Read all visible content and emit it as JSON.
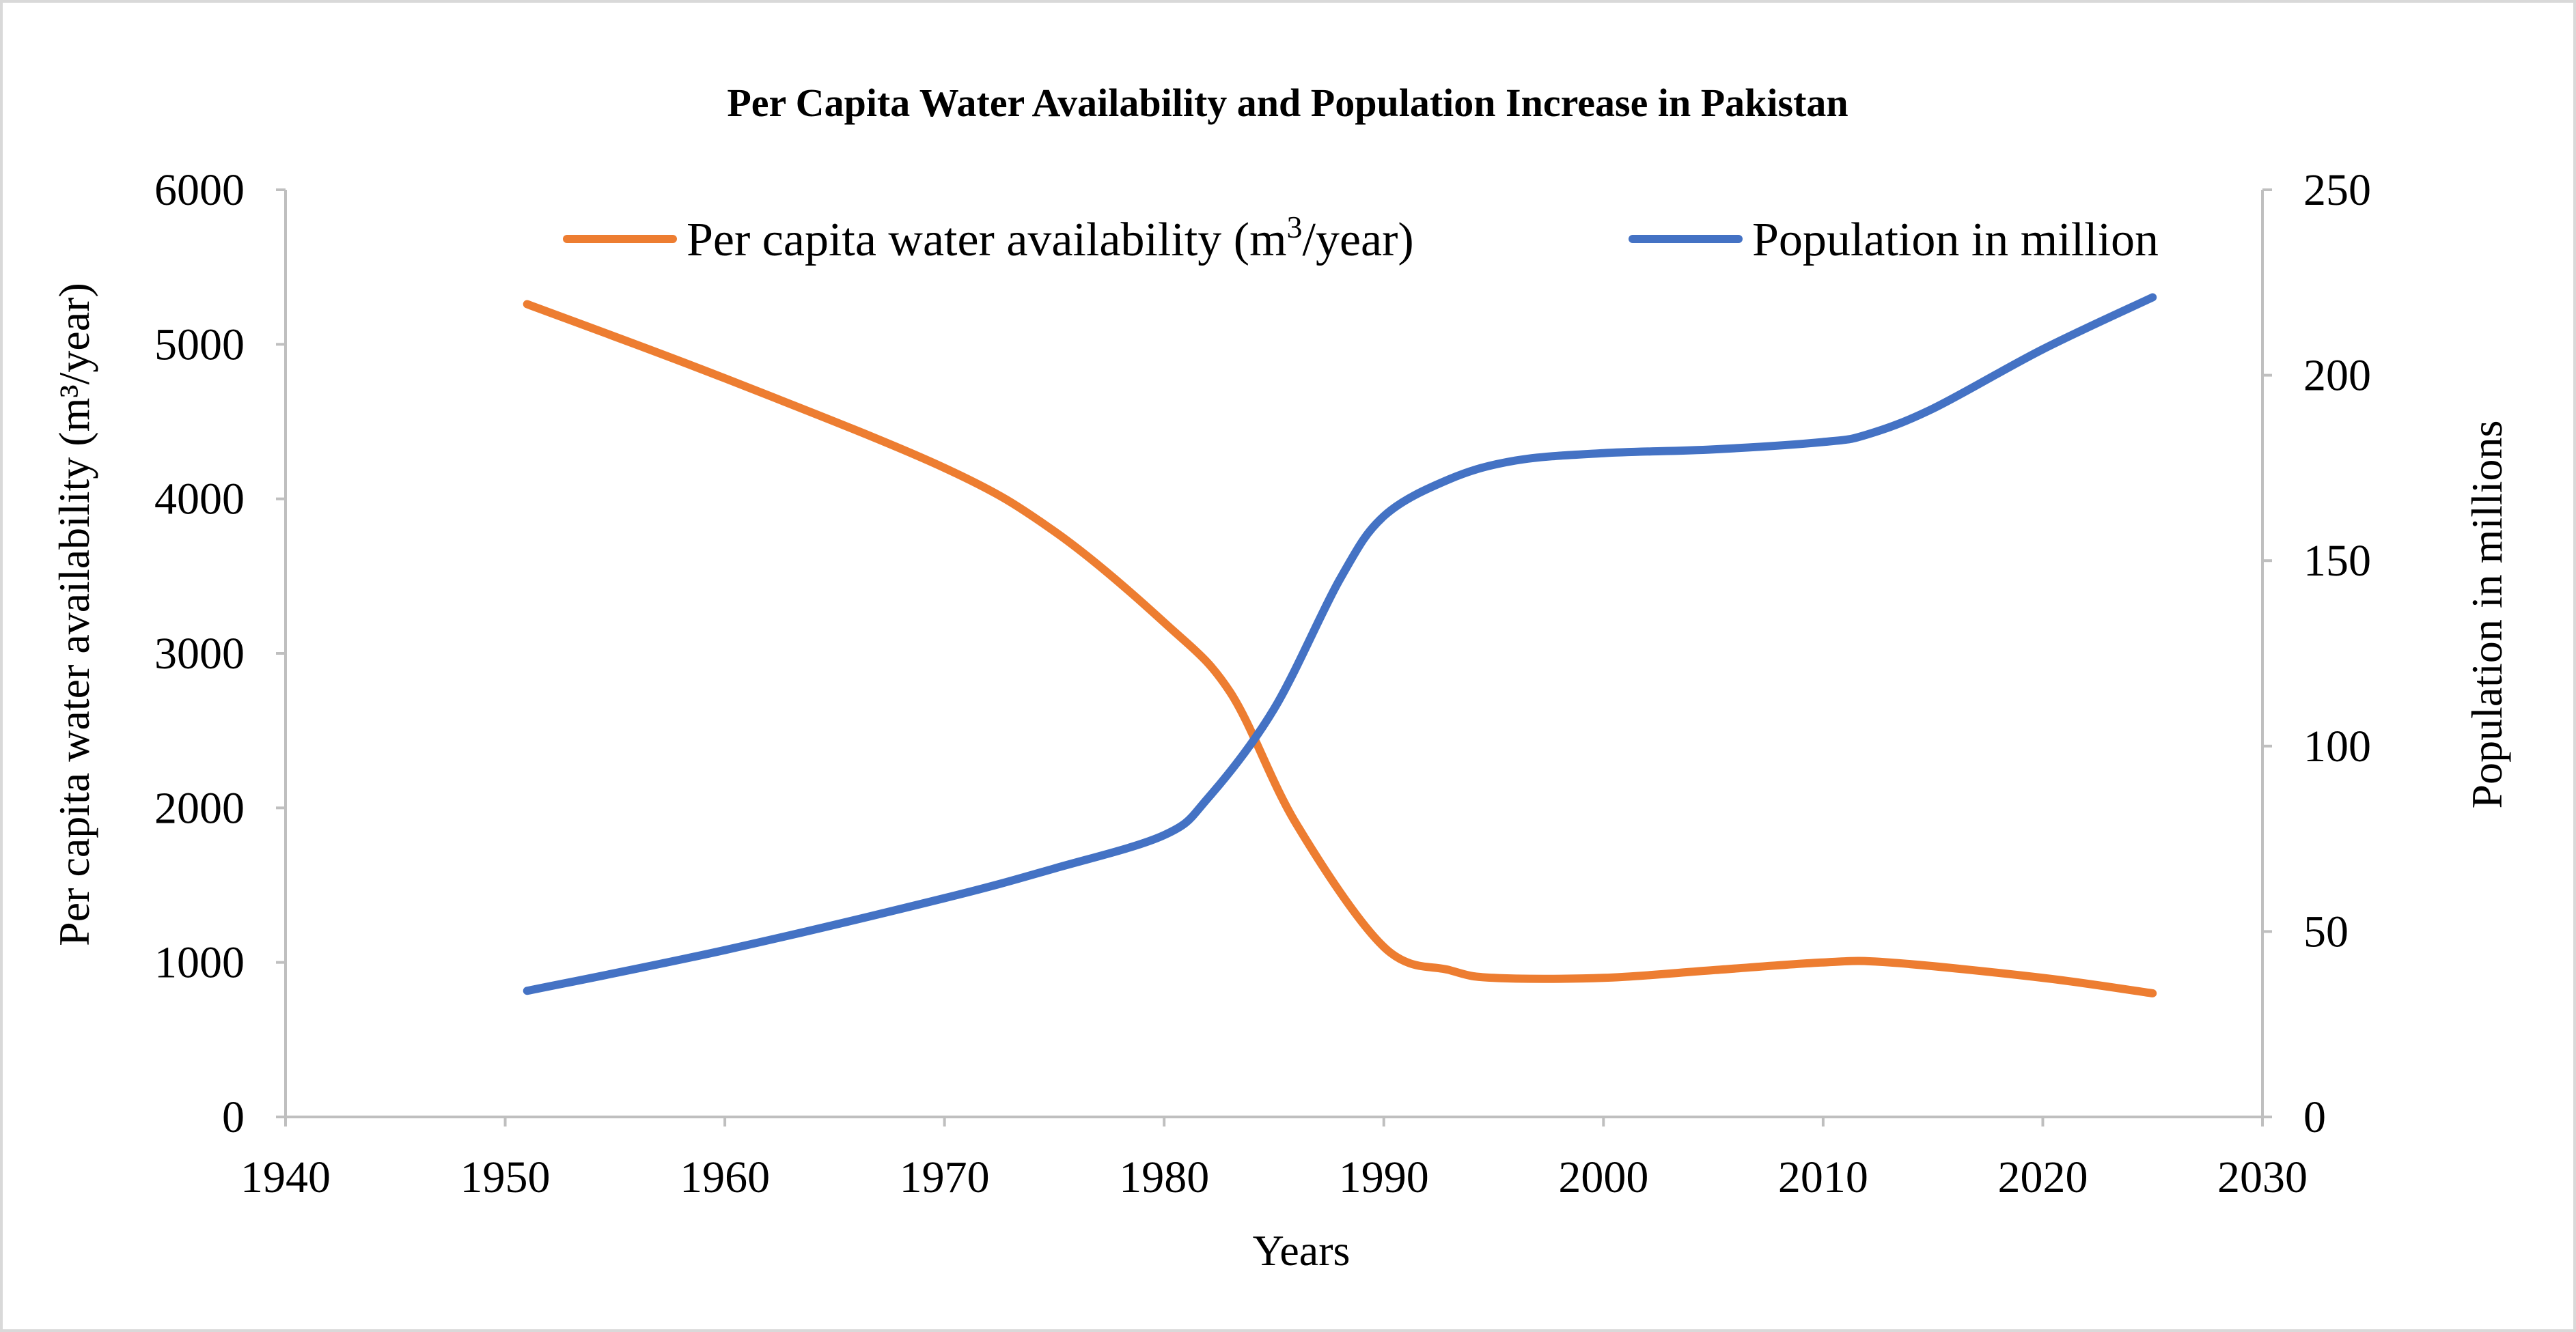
{
  "chart_data": {
    "type": "line",
    "title": "Per Capita Water Availability and Population Increase in Pakistan",
    "xlabel": "Years",
    "ylabel_left": "Per capita water availability (m³/year)",
    "ylabel_right": "Population in millions",
    "xlim": [
      1940,
      2030
    ],
    "ylim_left": [
      0,
      6000
    ],
    "ylim_right": [
      0,
      250
    ],
    "x_ticks": [
      "1940",
      "1950",
      "1960",
      "1970",
      "1980",
      "1990",
      "2000",
      "2010",
      "2020",
      "2030"
    ],
    "y_left_ticks": [
      "0",
      "1000",
      "2000",
      "3000",
      "4000",
      "5000",
      "6000"
    ],
    "y_right_ticks": [
      "0",
      "50",
      "100",
      "150",
      "200",
      "250"
    ],
    "grid": false,
    "legend_position": "top",
    "series": [
      {
        "name": "Per capita water availability (m3/year)",
        "legend_label": "Per capita water availability (m",
        "legend_sup": "3",
        "legend_suffix": "/year)",
        "axis": "left",
        "color": "#ED7D31",
        "x": [
          1951,
          1960,
          1970,
          1975,
          1980,
          1983,
          1986,
          1990,
          1993,
          1995,
          2000,
          2005,
          2010,
          2013,
          2020,
          2025
        ],
        "values": [
          5260,
          4780,
          4200,
          3790,
          3200,
          2750,
          1900,
          1100,
          950,
          900,
          900,
          950,
          1000,
          1000,
          900,
          800
        ]
      },
      {
        "name": "Population in million",
        "legend_label": "Population in million",
        "axis": "right",
        "color": "#4472C4",
        "x": [
          1951,
          1960,
          1970,
          1975,
          1980,
          1982,
          1985,
          1988,
          1990,
          1993,
          1996,
          2000,
          2005,
          2010,
          2012,
          2015,
          2020,
          2025
        ],
        "values": [
          34,
          45,
          59,
          67,
          76,
          86,
          110,
          145,
          162,
          172,
          177,
          179,
          180,
          182,
          184,
          191,
          207,
          221
        ]
      }
    ]
  }
}
